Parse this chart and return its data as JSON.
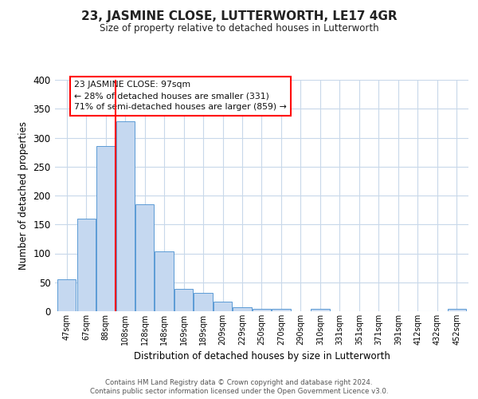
{
  "title": "23, JASMINE CLOSE, LUTTERWORTH, LE17 4GR",
  "subtitle": "Size of property relative to detached houses in Lutterworth",
  "xlabel": "Distribution of detached houses by size in Lutterworth",
  "ylabel": "Number of detached properties",
  "footer_line1": "Contains HM Land Registry data © Crown copyright and database right 2024.",
  "footer_line2": "Contains public sector information licensed under the Open Government Licence v3.0.",
  "bin_labels": [
    "47sqm",
    "67sqm",
    "88sqm",
    "108sqm",
    "128sqm",
    "148sqm",
    "169sqm",
    "189sqm",
    "209sqm",
    "229sqm",
    "250sqm",
    "270sqm",
    "290sqm",
    "310sqm",
    "331sqm",
    "351sqm",
    "371sqm",
    "391sqm",
    "412sqm",
    "432sqm",
    "452sqm"
  ],
  "bar_values": [
    55,
    160,
    285,
    328,
    185,
    103,
    38,
    32,
    16,
    7,
    4,
    4,
    0,
    4,
    0,
    0,
    0,
    0,
    0,
    0,
    4
  ],
  "bar_color": "#c5d8f0",
  "bar_edge_color": "#5b9bd5",
  "ylim": [
    0,
    400
  ],
  "yticks": [
    0,
    50,
    100,
    150,
    200,
    250,
    300,
    350,
    400
  ],
  "property_label": "23 JASMINE CLOSE: 97sqm",
  "pct_smaller": 28,
  "n_smaller": 331,
  "pct_larger_semi": 71,
  "n_larger_semi": 859,
  "red_line_bin_index": 2,
  "background_color": "#ffffff",
  "grid_color": "#c8d8ea"
}
